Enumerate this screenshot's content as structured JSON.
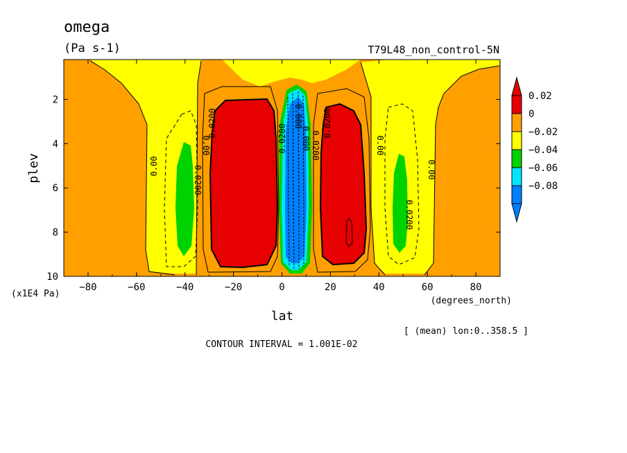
{
  "chart_data": {
    "type": "heatmap",
    "title": "omega",
    "units": "(Pa s-1)",
    "experiment": "T79L48_non_control-5N",
    "xlabel": "lat",
    "x_units": "(degrees_north)",
    "ylabel": "plev",
    "y_units": "(x1E4 Pa)",
    "xlim": [
      -90,
      90
    ],
    "ylim": [
      0.2,
      10
    ],
    "y_reversed": true,
    "x_ticks": [
      -80,
      -60,
      -40,
      -20,
      0,
      20,
      40,
      60,
      80
    ],
    "x_tick_labels": [
      "−80",
      "−60",
      "−40",
      "−20",
      "0",
      "20",
      "40",
      "60",
      "80"
    ],
    "y_ticks": [
      2,
      4,
      6,
      8,
      10
    ],
    "y_tick_labels": [
      "2",
      "4",
      "6",
      "8",
      "10"
    ],
    "colorbar": {
      "labels": [
        "0.02",
        "0",
        "−0.02",
        "−0.04",
        "−0.06",
        "−0.08"
      ],
      "colors": [
        "#e60000",
        "#ffa000",
        "#ffff00",
        "#00d200",
        "#00e6ff",
        "#0080ff"
      ],
      "min_triangle_color": "#0080ff",
      "max_triangle_color": "#e60000"
    },
    "contour_labels": [
      "0.00",
      "0.0200",
      "0.00",
      "0.0200",
      "0.0200",
      "0.000",
      "0.000",
      "0.0200",
      "0.0200",
      "0.00",
      "0.0200",
      "0.00"
    ],
    "averaging_note": "[ (mean) lon:0..358.5 ]",
    "contour_interval_text": "CONTOUR INTERVAL = 1.001E-02"
  }
}
